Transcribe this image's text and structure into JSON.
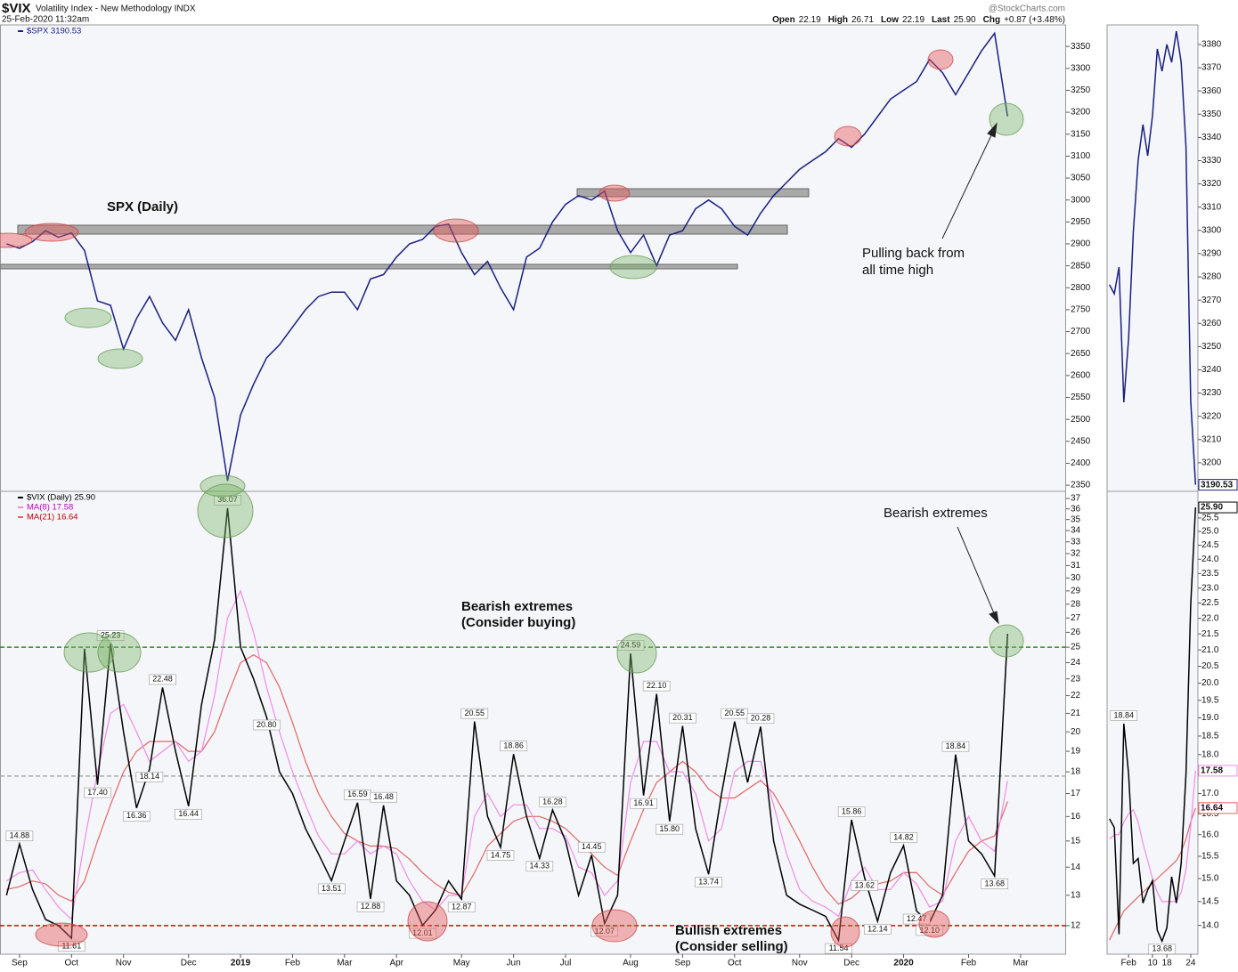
{
  "header": {
    "symbol": "$VIX",
    "name": "Volatility Index - New Methodology INDX",
    "date": "25-Feb-2020 11:32am",
    "source": "@StockCharts.com",
    "quote": [
      {
        "label": "Open",
        "value": "22.19"
      },
      {
        "label": "High",
        "value": "26.71"
      },
      {
        "label": "Low",
        "value": "22.19"
      },
      {
        "label": "Last",
        "value": "25.90"
      },
      {
        "label": "Chg",
        "value": "+0.87 (+3.48%)"
      }
    ]
  },
  "chart_data": [
    {
      "type": "line",
      "legend": "upper left",
      "annotations": [
        "SPX (Daily)",
        "Pulling back from",
        "all time high"
      ],
      "ylim": [
        2336,
        3399
      ],
      "yticks": [
        2350,
        2400,
        2450,
        2500,
        2550,
        2600,
        2650,
        2700,
        2750,
        2800,
        2850,
        2900,
        2950,
        3000,
        3050,
        3100,
        3150,
        3200,
        3250,
        3300,
        3350
      ],
      "series": [
        {
          "name": "$SPX 3190.53",
          "color": "#1a1f80",
          "values": [
            2900,
            2890,
            2905,
            2930,
            2915,
            2925,
            2885,
            2770,
            2760,
            2660,
            2730,
            2780,
            2720,
            2680,
            2750,
            2640,
            2550,
            2360,
            2510,
            2580,
            2640,
            2670,
            2710,
            2750,
            2780,
            2790,
            2790,
            2750,
            2820,
            2830,
            2870,
            2900,
            2910,
            2940,
            2945,
            2880,
            2830,
            2860,
            2800,
            2750,
            2870,
            2890,
            2950,
            2990,
            3010,
            3000,
            3020,
            2930,
            2880,
            2920,
            2850,
            2920,
            2930,
            2980,
            3000,
            2980,
            2940,
            2920,
            2970,
            3010,
            3040,
            3070,
            3090,
            3110,
            3140,
            3120,
            3150,
            3190,
            3230,
            3250,
            3270,
            3320,
            3290,
            3240,
            3290,
            3340,
            3380,
            3190.53,
            null,
            null,
            null,
            null
          ]
        }
      ]
    },
    {
      "type": "line",
      "log": true,
      "legend": "upper left",
      "annotations": [
        "Bearish extremes",
        "(Consider buying)",
        "Bearish extremes",
        "Bullish extremes",
        "(Consider selling)"
      ],
      "ylim": [
        11.13,
        37.7
      ],
      "yticks": [
        12,
        13,
        14,
        15,
        16,
        17,
        18,
        19,
        20,
        21,
        22,
        23,
        24,
        25,
        26,
        27,
        28,
        29,
        30,
        31,
        32,
        33,
        34,
        35,
        36,
        37
      ],
      "hlines": [
        {
          "value": 25,
          "color": "#2e8b20"
        },
        {
          "value": 17.8,
          "color": "#aaaaaa"
        },
        {
          "value": 12,
          "color": "#e00000"
        }
      ],
      "categories": [
        null,
        "Sep",
        null,
        null,
        null,
        "Oct",
        null,
        null,
        null,
        "Nov",
        null,
        null,
        null,
        null,
        "Dec",
        null,
        null,
        null,
        "2019",
        null,
        null,
        null,
        "Feb",
        null,
        null,
        null,
        "Mar",
        null,
        null,
        null,
        "Apr",
        null,
        null,
        null,
        null,
        "May",
        null,
        null,
        null,
        "Jun",
        null,
        null,
        null,
        "Jul",
        null,
        null,
        null,
        null,
        "Aug",
        null,
        null,
        null,
        "Sep",
        null,
        null,
        null,
        "Oct",
        null,
        null,
        null,
        null,
        "Nov",
        null,
        null,
        null,
        "Dec",
        null,
        null,
        null,
        "2020",
        null,
        null,
        null,
        null,
        "Feb",
        null,
        null,
        null,
        "Mar",
        null,
        null,
        null
      ],
      "series": [
        {
          "name": "$VIX (Daily) 25.90",
          "color": "#000000",
          "values": [
            13.0,
            14.88,
            13.2,
            12.2,
            12.0,
            11.61,
            24.9,
            17.4,
            25.23,
            20.0,
            16.36,
            18.14,
            22.48,
            19.0,
            16.44,
            21.5,
            25.5,
            36.07,
            25.0,
            23.0,
            20.8,
            18.0,
            17.0,
            15.5,
            14.5,
            13.51,
            15.0,
            16.59,
            12.88,
            16.48,
            13.5,
            13.0,
            12.01,
            12.5,
            13.5,
            12.87,
            20.55,
            16.0,
            14.75,
            18.86,
            16.0,
            14.33,
            16.28,
            15.0,
            13.0,
            14.45,
            12.07,
            13.0,
            24.59,
            16.91,
            22.1,
            15.8,
            20.31,
            15.5,
            13.74,
            17.0,
            20.55,
            17.5,
            20.28,
            15.0,
            13.0,
            12.7,
            12.5,
            12.3,
            11.54,
            15.86,
            13.62,
            12.14,
            13.8,
            14.82,
            12.47,
            12.1,
            13.0,
            18.84,
            15.0,
            14.5,
            13.68,
            25.9,
            null,
            null,
            null,
            null
          ],
          "value_labels": [
            null,
            "14.88",
            null,
            null,
            null,
            "11.61",
            null,
            "17.40",
            "25.23",
            null,
            "16.36",
            "18.14",
            "22.48",
            null,
            "16.44",
            null,
            null,
            "36.07",
            null,
            null,
            "20.80",
            null,
            null,
            null,
            null,
            "13.51",
            null,
            "16.59",
            "12.88",
            "16.48",
            null,
            null,
            "12.01",
            null,
            null,
            "12.87",
            "20.55",
            null,
            "14.75",
            "18.86",
            null,
            "14.33",
            "16.28",
            null,
            null,
            "14.45",
            "12.07",
            null,
            "24.59",
            "16.91",
            "22.10",
            "15.80",
            "20.31",
            null,
            "13.74",
            null,
            "20.55",
            null,
            "20.28",
            null,
            null,
            null,
            null,
            null,
            "11.54",
            "15.86",
            "13.62",
            "12.14",
            null,
            "14.82",
            "12.47",
            "12.10",
            null,
            "18.84",
            null,
            null,
            "13.68",
            null,
            null,
            null,
            null,
            null
          ]
        },
        {
          "name": "MA(8) 17.58",
          "color": "#f08ce8",
          "values": [
            13.5,
            13.8,
            13.9,
            13.2,
            12.6,
            12.2,
            15,
            18,
            21,
            21.5,
            20,
            18.5,
            19,
            19.5,
            18.5,
            19,
            22,
            27,
            29,
            26,
            22.5,
            20,
            18,
            16.5,
            15.2,
            14.5,
            14.5,
            15,
            14.5,
            14.8,
            14.5,
            13.5,
            12.8,
            12.5,
            13,
            13,
            16,
            17,
            16,
            16.5,
            16.5,
            15.5,
            15.5,
            15.2,
            14,
            13.8,
            13,
            13.5,
            17.5,
            19.5,
            19.5,
            18,
            18,
            17,
            15,
            15.5,
            18,
            18.5,
            18.5,
            16.5,
            14.5,
            13.2,
            12.8,
            12.6,
            12.3,
            13.5,
            14,
            13.2,
            13.2,
            13.8,
            13.4,
            12.6,
            12.8,
            15,
            16,
            15,
            14.6,
            17.58,
            null,
            null,
            null,
            null
          ]
        },
        {
          "name": "MA(21) 16.64",
          "color": "#e06666",
          "values": [
            13.2,
            13.3,
            13.5,
            13.4,
            13,
            12.8,
            13.5,
            15,
            16.5,
            18,
            19,
            19.5,
            19.5,
            19.5,
            19,
            19,
            20,
            22,
            24,
            24.5,
            24,
            22.5,
            20.5,
            18.5,
            17,
            16,
            15.3,
            15,
            14.8,
            14.8,
            14.7,
            14.3,
            13.8,
            13.4,
            13.1,
            13,
            13.8,
            14.8,
            15.3,
            15.8,
            16,
            16,
            15.8,
            15.5,
            15,
            14.5,
            14,
            13.7,
            15,
            16.3,
            17.5,
            18,
            18.5,
            18,
            17.2,
            16.8,
            16.8,
            17.2,
            17.6,
            17,
            16,
            15,
            14,
            13.2,
            12.7,
            12.9,
            13.3,
            13.4,
            13.5,
            13.8,
            13.8,
            13.3,
            13,
            13.8,
            14.6,
            15,
            15.2,
            16.64,
            null,
            null,
            null,
            null
          ]
        }
      ]
    },
    {
      "type": "line",
      "last_value_tag": true,
      "ylim": [
        3187.7,
        3388.4
      ],
      "yticks": [
        3200,
        3210,
        3220,
        3230,
        3240,
        3250,
        3260,
        3270,
        3280,
        3290,
        3300,
        3310,
        3320,
        3330,
        3340,
        3350,
        3360,
        3370,
        3380
      ],
      "series": [
        {
          "name": "$SPX",
          "color": "#1a1f80",
          "values": [
            3276.6,
            3272.7,
            3284.2,
            3226,
            3253.6,
            3299.5,
            3330.2,
            3345.5,
            3332.1,
            3349.3,
            3378.1,
            3368.5,
            3380,
            3372.3,
            3385.7,
            3372.3,
            3335.9,
            3226.7,
            3190.53
          ]
        }
      ]
    },
    {
      "type": "line",
      "log": true,
      "last_value_tag": true,
      "ylim": [
        13.42,
        26.52
      ],
      "yticks": [
        {
          "value": 14,
          "label": "14.0"
        },
        14.5,
        {
          "value": 15,
          "label": "15.0"
        },
        15.5,
        {
          "value": 16,
          "label": "16.0"
        },
        16.5,
        {
          "value": 17,
          "label": "17.0"
        },
        17.5,
        {
          "value": 18,
          "label": "18.0"
        },
        18.5,
        {
          "value": 19,
          "label": "19.0"
        },
        19.5,
        {
          "value": 20,
          "label": "20.0"
        },
        20.5,
        {
          "value": 21,
          "label": "21.0"
        },
        21.5,
        {
          "value": 22,
          "label": "22.0"
        },
        22.5,
        {
          "value": 23,
          "label": "23.0"
        },
        23.5,
        {
          "value": 24,
          "label": "24.0"
        },
        24.5,
        {
          "value": 25,
          "label": "25.0"
        },
        25.5
      ],
      "categories": [
        null,
        null,
        null,
        null,
        "Feb",
        null,
        null,
        null,
        null,
        "10",
        null,
        null,
        "18",
        null,
        null,
        null,
        null,
        "24",
        null
      ],
      "series": [
        {
          "name": "$VIX",
          "color": "#000000",
          "values": [
            16.38,
            16.17,
            13.82,
            18.84,
            17.49,
            15.34,
            15.45,
            14.47,
            14.75,
            14.95,
            13.9,
            13.68,
            13.95,
            15.04,
            14.47,
            15.34,
            17.49,
            22.43,
            25.9
          ],
          "value_labels": [
            null,
            null,
            null,
            "18.84",
            null,
            null,
            null,
            null,
            null,
            null,
            null,
            "13.68",
            null,
            null,
            null,
            null,
            null,
            null,
            "25.90"
          ]
        },
        {
          "name": "MA(8)",
          "color": "#f08ce8",
          "values": [
            15.9,
            16.0,
            16.0,
            16.3,
            16.5,
            16.6,
            16.3,
            15.8,
            15.4,
            15.0,
            14.7,
            14.5,
            14.5,
            14.5,
            14.5,
            14.7,
            15.2,
            16.2,
            17.58
          ],
          "value_labels": [
            null,
            null,
            null,
            null,
            null,
            null,
            null,
            null,
            null,
            null,
            null,
            null,
            null,
            null,
            null,
            null,
            null,
            null,
            "17.58"
          ]
        },
        {
          "name": "MA(21)",
          "color": "#e06666",
          "values": [
            13.7,
            13.9,
            14.1,
            14.3,
            14.4,
            14.5,
            14.6,
            14.7,
            14.8,
            14.9,
            15.0,
            15.1,
            15.2,
            15.3,
            15.4,
            15.6,
            15.9,
            16.3,
            16.64
          ],
          "value_labels": [
            null,
            null,
            null,
            null,
            null,
            null,
            null,
            null,
            null,
            null,
            null,
            null,
            null,
            null,
            null,
            null,
            null,
            null,
            "16.64"
          ]
        }
      ]
    }
  ]
}
